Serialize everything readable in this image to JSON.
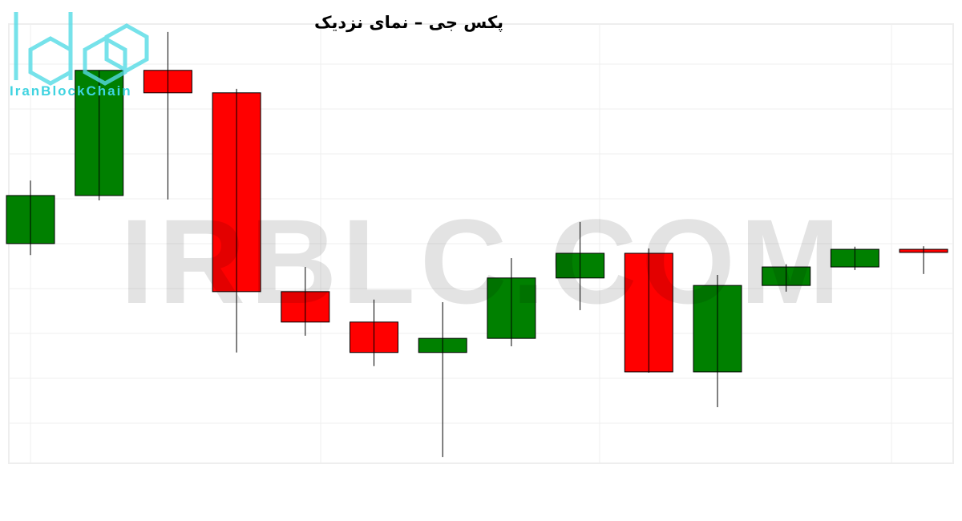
{
  "chart_data": {
    "type": "candlestick",
    "title": "پکس جی – نمای نزدیک",
    "xlabel": "",
    "ylabel": "",
    "ylim": [
      0,
      100
    ],
    "grid": true,
    "colors": {
      "up": "#008000",
      "down": "#ff0000",
      "wick": "#000000"
    },
    "candles": [
      {
        "open": 50.2,
        "close": 61.1,
        "high": 64.5,
        "low": 47.6
      },
      {
        "open": 61.1,
        "close": 89.5,
        "high": 89.5,
        "low": 60.0
      },
      {
        "open": 89.5,
        "close": 84.4,
        "high": 98.2,
        "low": 60.2
      },
      {
        "open": 84.4,
        "close": 39.3,
        "high": 85.3,
        "low": 25.5
      },
      {
        "open": 39.3,
        "close": 32.4,
        "high": 44.9,
        "low": 29.3
      },
      {
        "open": 32.4,
        "close": 25.5,
        "high": 37.5,
        "low": 22.4
      },
      {
        "open": 25.5,
        "close": 28.7,
        "high": 36.9,
        "low": 1.8
      },
      {
        "open": 28.7,
        "close": 42.4,
        "high": 46.9,
        "low": 26.9
      },
      {
        "open": 42.4,
        "close": 48.0,
        "high": 55.1,
        "low": 35.1
      },
      {
        "open": 48.0,
        "close": 21.1,
        "high": 49.1,
        "low": 20.9
      },
      {
        "open": 21.1,
        "close": 40.7,
        "high": 43.1,
        "low": 13.1
      },
      {
        "open": 40.7,
        "close": 44.9,
        "high": 45.5,
        "low": 39.3
      },
      {
        "open": 44.9,
        "close": 48.9,
        "high": 49.5,
        "low": 44.2
      },
      {
        "open": 48.9,
        "close": 48.2,
        "high": 49.6,
        "low": 43.3
      }
    ]
  },
  "logo": {
    "text": "IranBlockChain",
    "color": "#3fd3e0"
  },
  "watermark": "IRBLC.COM"
}
